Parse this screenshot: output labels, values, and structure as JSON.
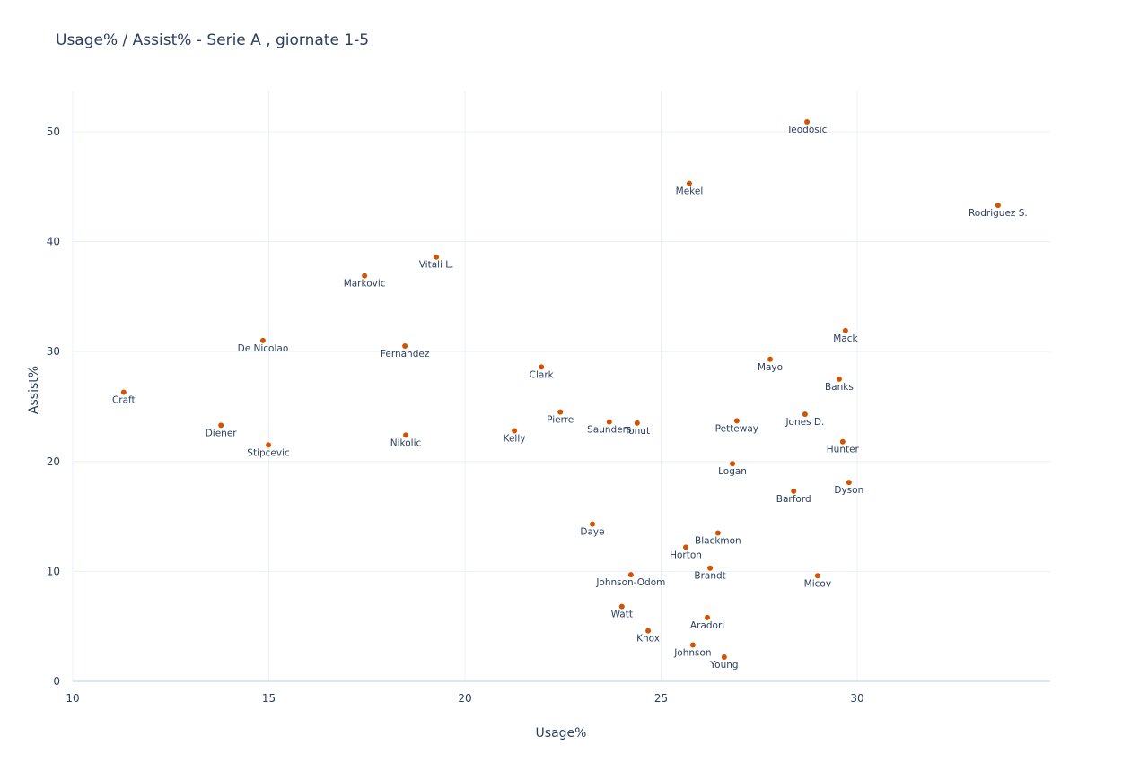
{
  "chart_data": {
    "type": "scatter",
    "title": "Usage% / Assist% - Serie A , giornate 1-5",
    "x_label": "Usage%",
    "y_label": "Assist%",
    "color": "#d35400",
    "labels": [
      "Teodosic",
      "Mekel",
      "Rodriguez S.",
      "Vitali L.",
      "Markovic",
      "De Nicolao",
      "Fernandez",
      "Mack",
      "Mayo",
      "Clark",
      "Banks",
      "Craft",
      "Pierre",
      "Saunders",
      "Tonut",
      "Petteway",
      "Jones D.",
      "Diener",
      "Kelly",
      "Nikolic",
      "Stipcevic",
      "Hunter",
      "Logan",
      "Barford",
      "Dyson",
      "Daye",
      "Blackmon",
      "Horton",
      "Brandt",
      "Johnson-Odom",
      "Micov",
      "Watt",
      "Aradori",
      "Knox",
      "Johnson",
      "Young"
    ],
    "x": [
      28.72,
      25.72,
      33.59,
      19.27,
      17.44,
      14.85,
      18.47,
      29.7,
      27.78,
      21.95,
      29.54,
      11.3,
      22.43,
      23.68,
      24.39,
      26.93,
      28.67,
      13.78,
      21.26,
      18.49,
      14.99,
      29.63,
      26.82,
      28.38,
      29.79,
      23.25,
      26.45,
      25.63,
      26.25,
      24.23,
      28.99,
      24.0,
      26.18,
      24.67,
      25.81,
      26.61
    ],
    "values": [
      50.9,
      45.3,
      43.3,
      38.6,
      36.9,
      31.0,
      30.5,
      31.9,
      29.3,
      28.6,
      27.5,
      26.3,
      24.5,
      23.6,
      23.5,
      23.7,
      24.3,
      23.3,
      22.8,
      22.4,
      21.5,
      21.8,
      19.8,
      17.3,
      18.1,
      14.3,
      13.5,
      12.2,
      10.3,
      9.7,
      9.6,
      6.8,
      5.8,
      4.6,
      3.3,
      2.2
    ],
    "xlim": [
      10,
      34.92
    ],
    "ylim": [
      0,
      53.75
    ],
    "xticks": [
      10,
      15,
      20,
      25,
      30
    ],
    "yticks": [
      0,
      10,
      20,
      30,
      40,
      50
    ],
    "grid": true
  }
}
